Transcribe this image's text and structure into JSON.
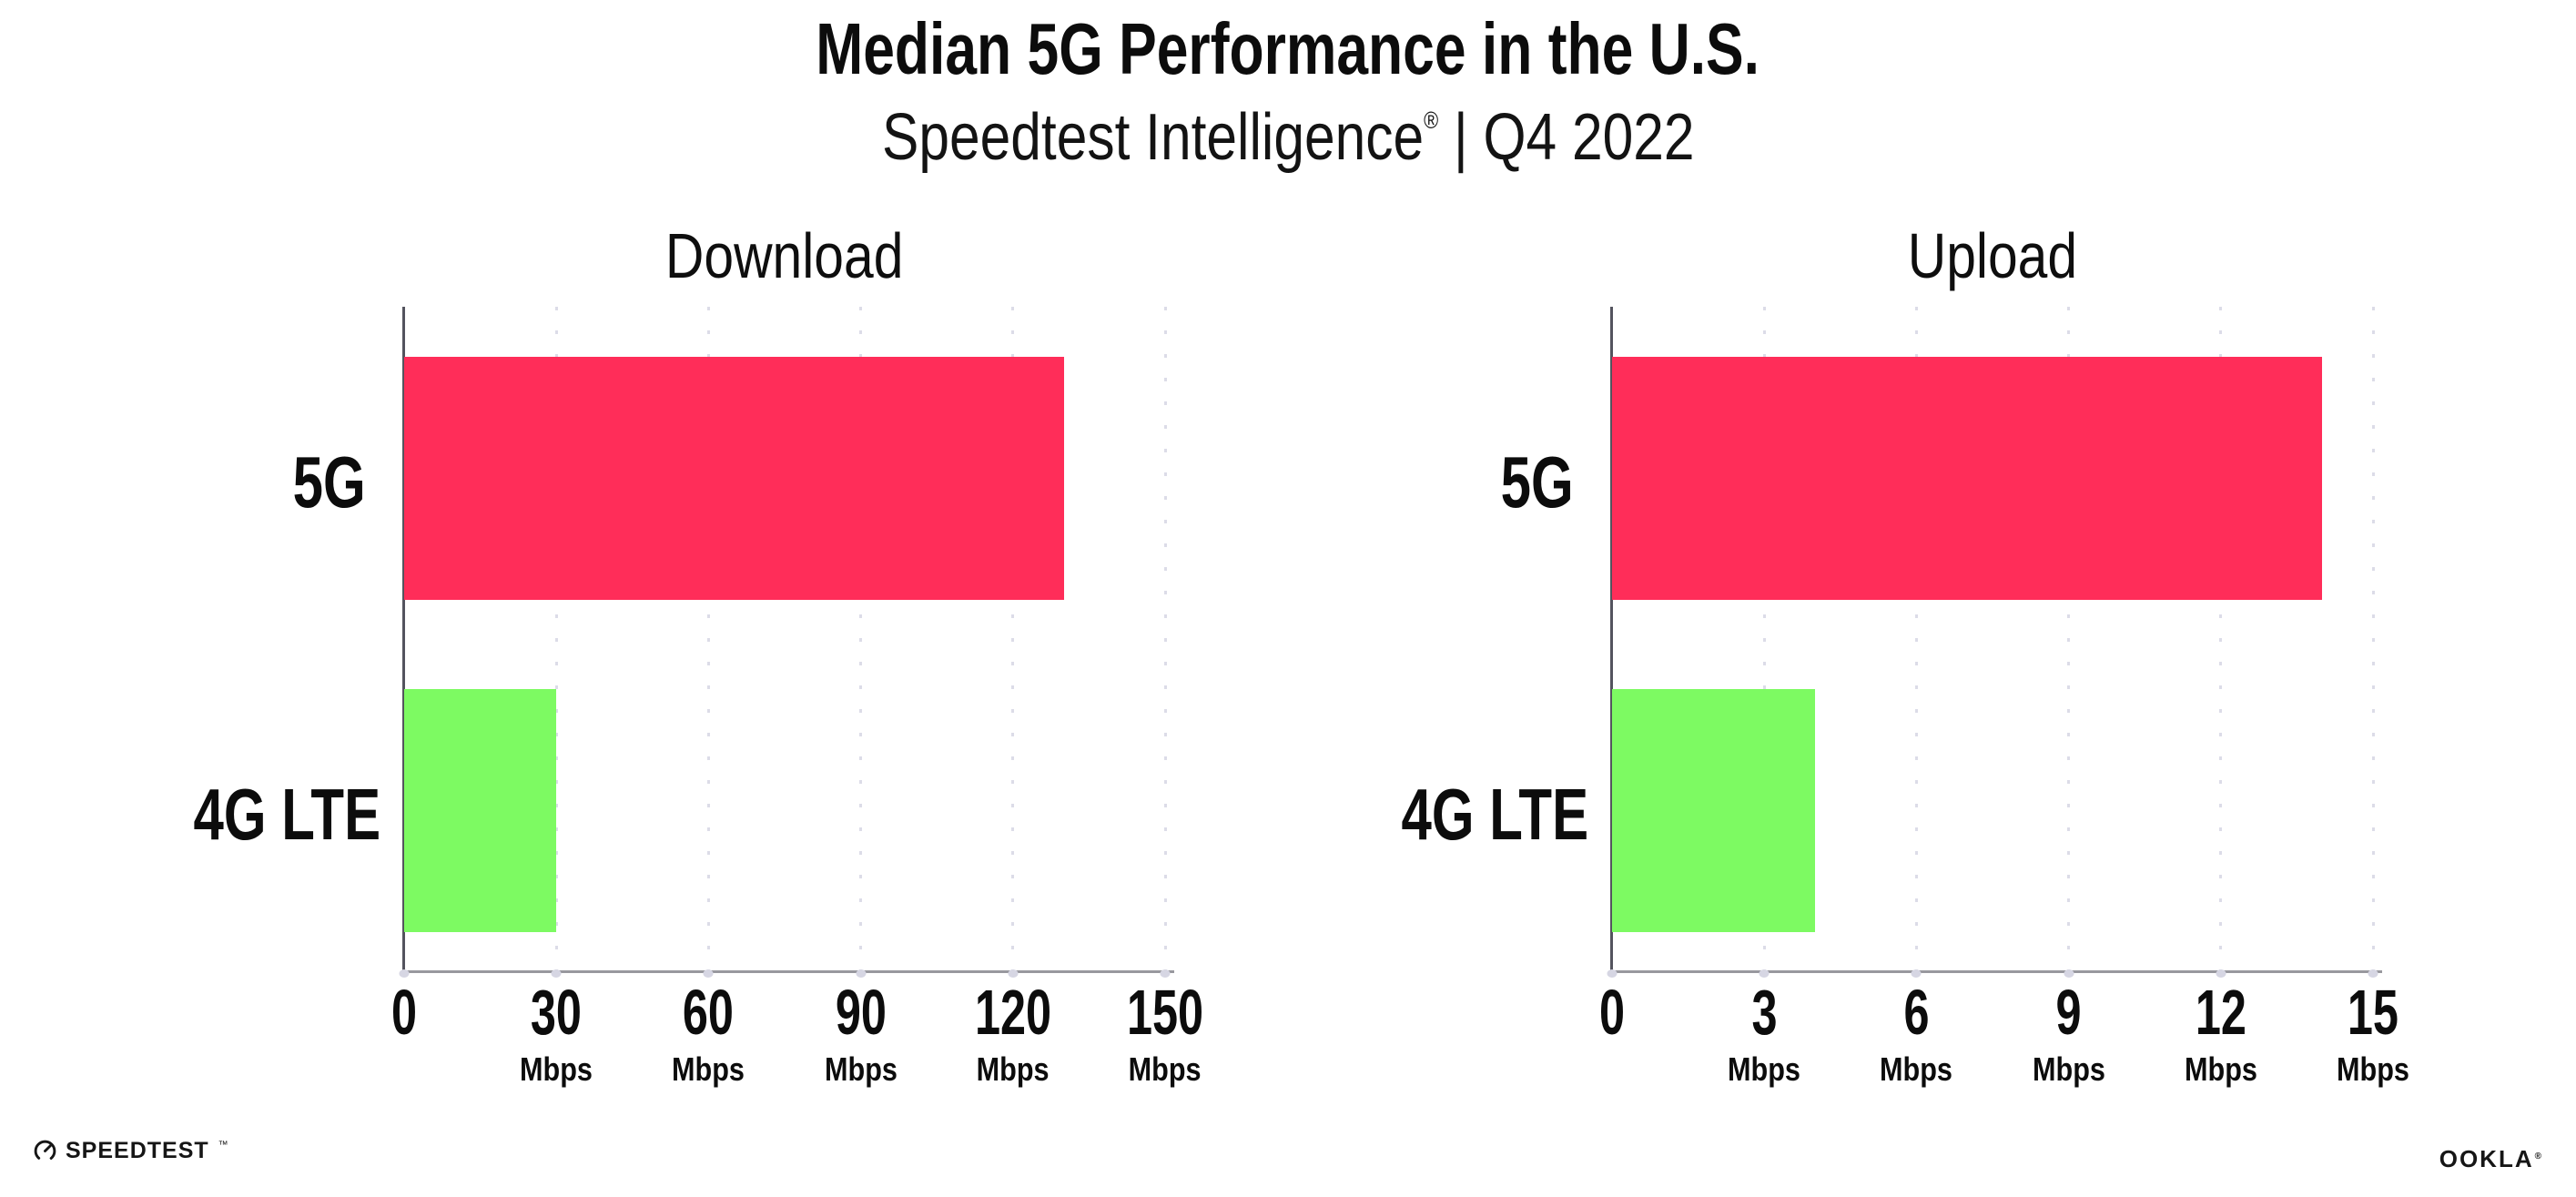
{
  "header": {
    "title": "Median 5G Performance in the U.S.",
    "subtitle_brand": "Speedtest Intelligence",
    "subtitle_reg": "®",
    "subtitle_rest": " | Q4 2022"
  },
  "chart_data": [
    {
      "type": "bar",
      "orientation": "horizontal",
      "title": "Download",
      "categories": [
        "5G",
        "4G LTE"
      ],
      "values": [
        130,
        30
      ],
      "unit": "Mbps",
      "xlabel": "",
      "ylabel": "",
      "xlim": [
        0,
        150
      ],
      "xticks": [
        0,
        30,
        60,
        90,
        120,
        150
      ],
      "colors": [
        "#ff2d59",
        "#7dfa62"
      ],
      "grid": "dotted-vertical",
      "legend": "none"
    },
    {
      "type": "bar",
      "orientation": "horizontal",
      "title": "Upload",
      "categories": [
        "5G",
        "4G LTE"
      ],
      "values": [
        14,
        4
      ],
      "unit": "Mbps",
      "xlabel": "",
      "ylabel": "",
      "xlim": [
        0,
        15
      ],
      "xticks": [
        0,
        3,
        6,
        9,
        12,
        15
      ],
      "colors": [
        "#ff2d59",
        "#7dfa62"
      ],
      "grid": "dotted-vertical",
      "legend": "none"
    }
  ],
  "footer": {
    "speedtest_label": "SPEEDTEST",
    "speedtest_tm": "™",
    "ookla_label": "OOKLA",
    "ookla_reg": "®"
  },
  "colors": {
    "bar_5g": "#ff2d59",
    "bar_4g_lte": "#7dfa62",
    "axis_line": "#54545e",
    "baseline": "#98989e",
    "grid_dot": "#dcdce8",
    "tick_dot": "#d6d6e3",
    "text": "#0c0c0c"
  }
}
